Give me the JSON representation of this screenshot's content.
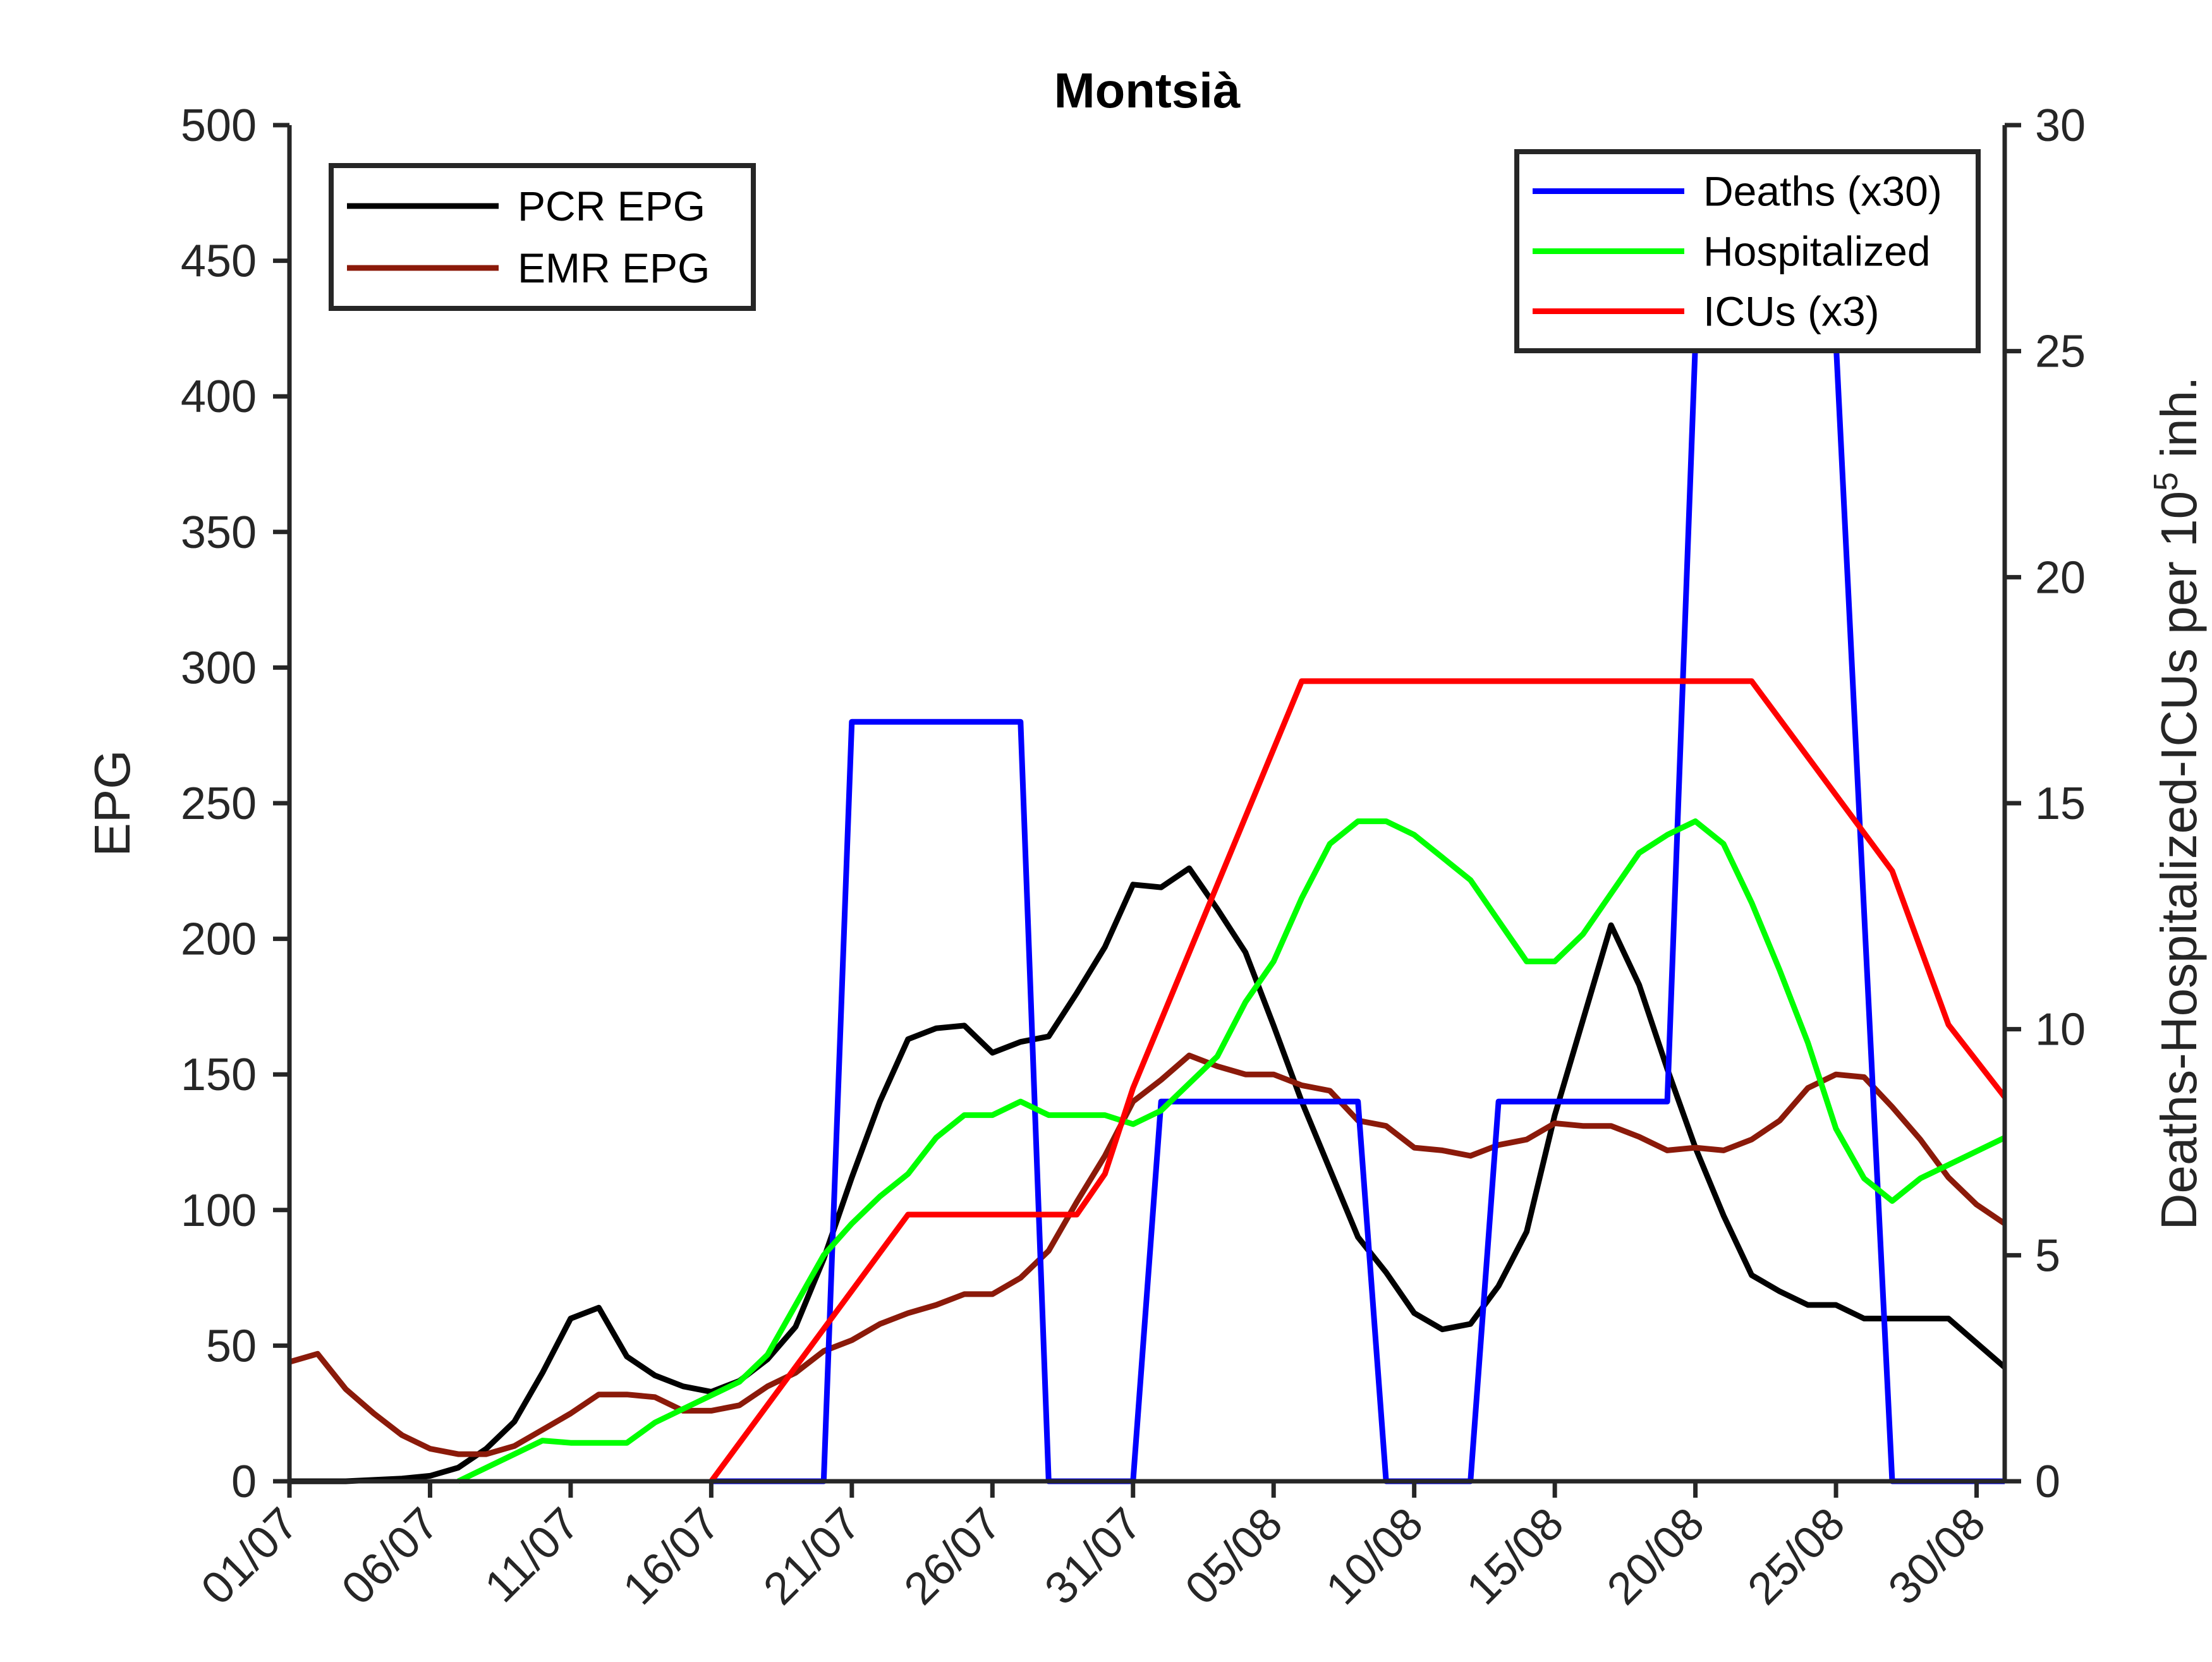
{
  "chart_data": {
    "type": "line",
    "title": "Montsià",
    "xlabel": "",
    "ylabel_left": "EPG",
    "ylabel_right": "Deaths-Hospitalized-ICUs per 10^5 inh.",
    "ylabel_right_parts": {
      "base": "Deaths-Hospitalized-ICUs per 10",
      "superscript": "5",
      "suffix": " inh."
    },
    "ylim_left": [
      0,
      500
    ],
    "ylim_right": [
      0,
      30
    ],
    "yticks_left": [
      "0",
      "50",
      "100",
      "150",
      "200",
      "250",
      "300",
      "350",
      "400",
      "450",
      "500"
    ],
    "yticks_right": [
      "0",
      "5",
      "10",
      "15",
      "20",
      "25",
      "30"
    ],
    "x_start_date": "2020-07-01",
    "x_end_date": "2020-08-31",
    "xticks": [
      "01/07",
      "06/07",
      "11/07",
      "16/07",
      "21/07",
      "26/07",
      "31/07",
      "05/08",
      "10/08",
      "15/08",
      "20/08",
      "25/08",
      "30/08"
    ],
    "grid": false,
    "legend_left_position": "top-left",
    "legend_right_position": "top-right",
    "left_series": [
      {
        "name": "PCR EPG",
        "color": "#000000",
        "points": [
          [
            "2020-07-01",
            0
          ],
          [
            "2020-07-02",
            0
          ],
          [
            "2020-07-03",
            0
          ],
          [
            "2020-07-04",
            0.5
          ],
          [
            "2020-07-05",
            1
          ],
          [
            "2020-07-06",
            2
          ],
          [
            "2020-07-07",
            5
          ],
          [
            "2020-07-08",
            12
          ],
          [
            "2020-07-09",
            22
          ],
          [
            "2020-07-10",
            40
          ],
          [
            "2020-07-11",
            60
          ],
          [
            "2020-07-12",
            64
          ],
          [
            "2020-07-13",
            46
          ],
          [
            "2020-07-14",
            39
          ],
          [
            "2020-07-15",
            35
          ],
          [
            "2020-07-16",
            33
          ],
          [
            "2020-07-17",
            37
          ],
          [
            "2020-07-18",
            45
          ],
          [
            "2020-07-19",
            57
          ],
          [
            "2020-07-20",
            82
          ],
          [
            "2020-07-21",
            112
          ],
          [
            "2020-07-22",
            140
          ],
          [
            "2020-07-23",
            163
          ],
          [
            "2020-07-24",
            167
          ],
          [
            "2020-07-25",
            168
          ],
          [
            "2020-07-26",
            158
          ],
          [
            "2020-07-27",
            162
          ],
          [
            "2020-07-28",
            164
          ],
          [
            "2020-07-29",
            180
          ],
          [
            "2020-07-30",
            197
          ],
          [
            "2020-07-31",
            220
          ],
          [
            "2020-08-01",
            219
          ],
          [
            "2020-08-02",
            226
          ],
          [
            "2020-08-03",
            211
          ],
          [
            "2020-08-04",
            195
          ],
          [
            "2020-08-05",
            168
          ],
          [
            "2020-08-06",
            140
          ],
          [
            "2020-08-07",
            115
          ],
          [
            "2020-08-08",
            90
          ],
          [
            "2020-08-09",
            77
          ],
          [
            "2020-08-10",
            62
          ],
          [
            "2020-08-11",
            56
          ],
          [
            "2020-08-12",
            58
          ],
          [
            "2020-08-13",
            72
          ],
          [
            "2020-08-14",
            92
          ],
          [
            "2020-08-15",
            135
          ],
          [
            "2020-08-16",
            170
          ],
          [
            "2020-08-17",
            205
          ],
          [
            "2020-08-18",
            183
          ],
          [
            "2020-08-19",
            152
          ],
          [
            "2020-08-20",
            123
          ],
          [
            "2020-08-21",
            98
          ],
          [
            "2020-08-22",
            76
          ],
          [
            "2020-08-23",
            70
          ],
          [
            "2020-08-24",
            65
          ],
          [
            "2020-08-25",
            65
          ],
          [
            "2020-08-26",
            60
          ],
          [
            "2020-08-27",
            60
          ],
          [
            "2020-08-28",
            60
          ],
          [
            "2020-08-29",
            60
          ],
          [
            "2020-08-30",
            51
          ],
          [
            "2020-08-31",
            42
          ]
        ]
      },
      {
        "name": "EMR EPG",
        "color": "#8b1a0a",
        "points": [
          [
            "2020-07-01",
            44
          ],
          [
            "2020-07-02",
            47
          ],
          [
            "2020-07-03",
            34
          ],
          [
            "2020-07-04",
            25
          ],
          [
            "2020-07-05",
            17
          ],
          [
            "2020-07-06",
            12
          ],
          [
            "2020-07-07",
            10
          ],
          [
            "2020-07-08",
            10
          ],
          [
            "2020-07-09",
            13
          ],
          [
            "2020-07-10",
            19
          ],
          [
            "2020-07-11",
            25
          ],
          [
            "2020-07-12",
            32
          ],
          [
            "2020-07-13",
            32
          ],
          [
            "2020-07-14",
            31
          ],
          [
            "2020-07-15",
            26
          ],
          [
            "2020-07-16",
            26
          ],
          [
            "2020-07-17",
            28
          ],
          [
            "2020-07-18",
            35
          ],
          [
            "2020-07-19",
            40
          ],
          [
            "2020-07-20",
            48
          ],
          [
            "2020-07-21",
            52
          ],
          [
            "2020-07-22",
            58
          ],
          [
            "2020-07-23",
            62
          ],
          [
            "2020-07-24",
            65
          ],
          [
            "2020-07-25",
            69
          ],
          [
            "2020-07-26",
            69
          ],
          [
            "2020-07-27",
            75
          ],
          [
            "2020-07-28",
            85
          ],
          [
            "2020-07-29",
            103
          ],
          [
            "2020-07-30",
            120
          ],
          [
            "2020-07-31",
            140
          ],
          [
            "2020-08-01",
            148
          ],
          [
            "2020-08-02",
            157
          ],
          [
            "2020-08-03",
            153
          ],
          [
            "2020-08-04",
            150
          ],
          [
            "2020-08-05",
            150
          ],
          [
            "2020-08-06",
            146
          ],
          [
            "2020-08-07",
            144
          ],
          [
            "2020-08-08",
            133
          ],
          [
            "2020-08-09",
            131
          ],
          [
            "2020-08-10",
            123
          ],
          [
            "2020-08-11",
            122
          ],
          [
            "2020-08-12",
            120
          ],
          [
            "2020-08-13",
            124
          ],
          [
            "2020-08-14",
            126
          ],
          [
            "2020-08-15",
            132
          ],
          [
            "2020-08-16",
            131
          ],
          [
            "2020-08-17",
            131
          ],
          [
            "2020-08-18",
            127
          ],
          [
            "2020-08-19",
            122
          ],
          [
            "2020-08-20",
            123
          ],
          [
            "2020-08-21",
            122
          ],
          [
            "2020-08-22",
            126
          ],
          [
            "2020-08-23",
            133
          ],
          [
            "2020-08-24",
            145
          ],
          [
            "2020-08-25",
            150
          ],
          [
            "2020-08-26",
            149
          ],
          [
            "2020-08-27",
            138
          ],
          [
            "2020-08-28",
            126
          ],
          [
            "2020-08-29",
            112
          ],
          [
            "2020-08-30",
            102
          ],
          [
            "2020-08-31",
            95
          ]
        ]
      }
    ],
    "right_series": [
      {
        "name": "Deaths (x30)",
        "color": "#0000ff",
        "points": [
          [
            "2020-07-16",
            0
          ],
          [
            "2020-07-20",
            0
          ],
          [
            "2020-07-21",
            16.8
          ],
          [
            "2020-07-27",
            16.8
          ],
          [
            "2020-07-28",
            0
          ],
          [
            "2020-07-31",
            0
          ],
          [
            "2020-08-01",
            8.4
          ],
          [
            "2020-08-08",
            8.4
          ],
          [
            "2020-08-09",
            0
          ],
          [
            "2020-08-12",
            0
          ],
          [
            "2020-08-13",
            8.4
          ],
          [
            "2020-08-19",
            8.4
          ],
          [
            "2020-08-20",
            25.2
          ],
          [
            "2020-08-25",
            25.2
          ],
          [
            "2020-08-27",
            0
          ],
          [
            "2020-08-31",
            0
          ]
        ]
      },
      {
        "name": "Hospitalized",
        "color": "#00ff00",
        "points": [
          [
            "2020-07-07",
            0
          ],
          [
            "2020-07-09",
            0.6
          ],
          [
            "2020-07-10",
            0.9
          ],
          [
            "2020-07-11",
            0.85
          ],
          [
            "2020-07-12",
            0.85
          ],
          [
            "2020-07-13",
            0.85
          ],
          [
            "2020-07-14",
            1.3
          ],
          [
            "2020-07-15",
            1.6
          ],
          [
            "2020-07-16",
            1.9
          ],
          [
            "2020-07-17",
            2.2
          ],
          [
            "2020-07-18",
            2.8
          ],
          [
            "2020-07-19",
            3.9
          ],
          [
            "2020-07-20",
            5.0
          ],
          [
            "2020-07-21",
            5.7
          ],
          [
            "2020-07-22",
            6.3
          ],
          [
            "2020-07-23",
            6.8
          ],
          [
            "2020-07-24",
            7.6
          ],
          [
            "2020-07-25",
            8.1
          ],
          [
            "2020-07-26",
            8.1
          ],
          [
            "2020-07-27",
            8.4
          ],
          [
            "2020-07-28",
            8.1
          ],
          [
            "2020-07-29",
            8.1
          ],
          [
            "2020-07-30",
            8.1
          ],
          [
            "2020-07-31",
            7.9
          ],
          [
            "2020-08-01",
            8.2
          ],
          [
            "2020-08-02",
            8.8
          ],
          [
            "2020-08-03",
            9.4
          ],
          [
            "2020-08-04",
            10.6
          ],
          [
            "2020-08-05",
            11.5
          ],
          [
            "2020-08-06",
            12.9
          ],
          [
            "2020-08-07",
            14.1
          ],
          [
            "2020-08-08",
            14.6
          ],
          [
            "2020-08-09",
            14.6
          ],
          [
            "2020-08-10",
            14.3
          ],
          [
            "2020-08-11",
            13.8
          ],
          [
            "2020-08-12",
            13.3
          ],
          [
            "2020-08-13",
            12.4
          ],
          [
            "2020-08-14",
            11.5
          ],
          [
            "2020-08-15",
            11.5
          ],
          [
            "2020-08-16",
            12.1
          ],
          [
            "2020-08-17",
            13.0
          ],
          [
            "2020-08-18",
            13.9
          ],
          [
            "2020-08-19",
            14.3
          ],
          [
            "2020-08-20",
            14.6
          ],
          [
            "2020-08-21",
            14.1
          ],
          [
            "2020-08-22",
            12.8
          ],
          [
            "2020-08-23",
            11.3
          ],
          [
            "2020-08-24",
            9.7
          ],
          [
            "2020-08-25",
            7.8
          ],
          [
            "2020-08-26",
            6.7
          ],
          [
            "2020-08-27",
            6.2
          ],
          [
            "2020-08-28",
            6.7
          ],
          [
            "2020-08-29",
            7.0
          ],
          [
            "2020-08-30",
            7.3
          ],
          [
            "2020-08-31",
            7.6
          ]
        ]
      },
      {
        "name": "ICUs (x3)",
        "color": "#ff0000",
        "points": [
          [
            "2020-07-16",
            0
          ],
          [
            "2020-07-23",
            5.9
          ],
          [
            "2020-07-29",
            5.9
          ],
          [
            "2020-07-30",
            6.8
          ],
          [
            "2020-07-31",
            8.7
          ],
          [
            "2020-08-06",
            17.7
          ],
          [
            "2020-08-22",
            17.7
          ],
          [
            "2020-08-27",
            13.5
          ],
          [
            "2020-08-29",
            10.1
          ],
          [
            "2020-08-31",
            8.5
          ]
        ]
      }
    ]
  }
}
